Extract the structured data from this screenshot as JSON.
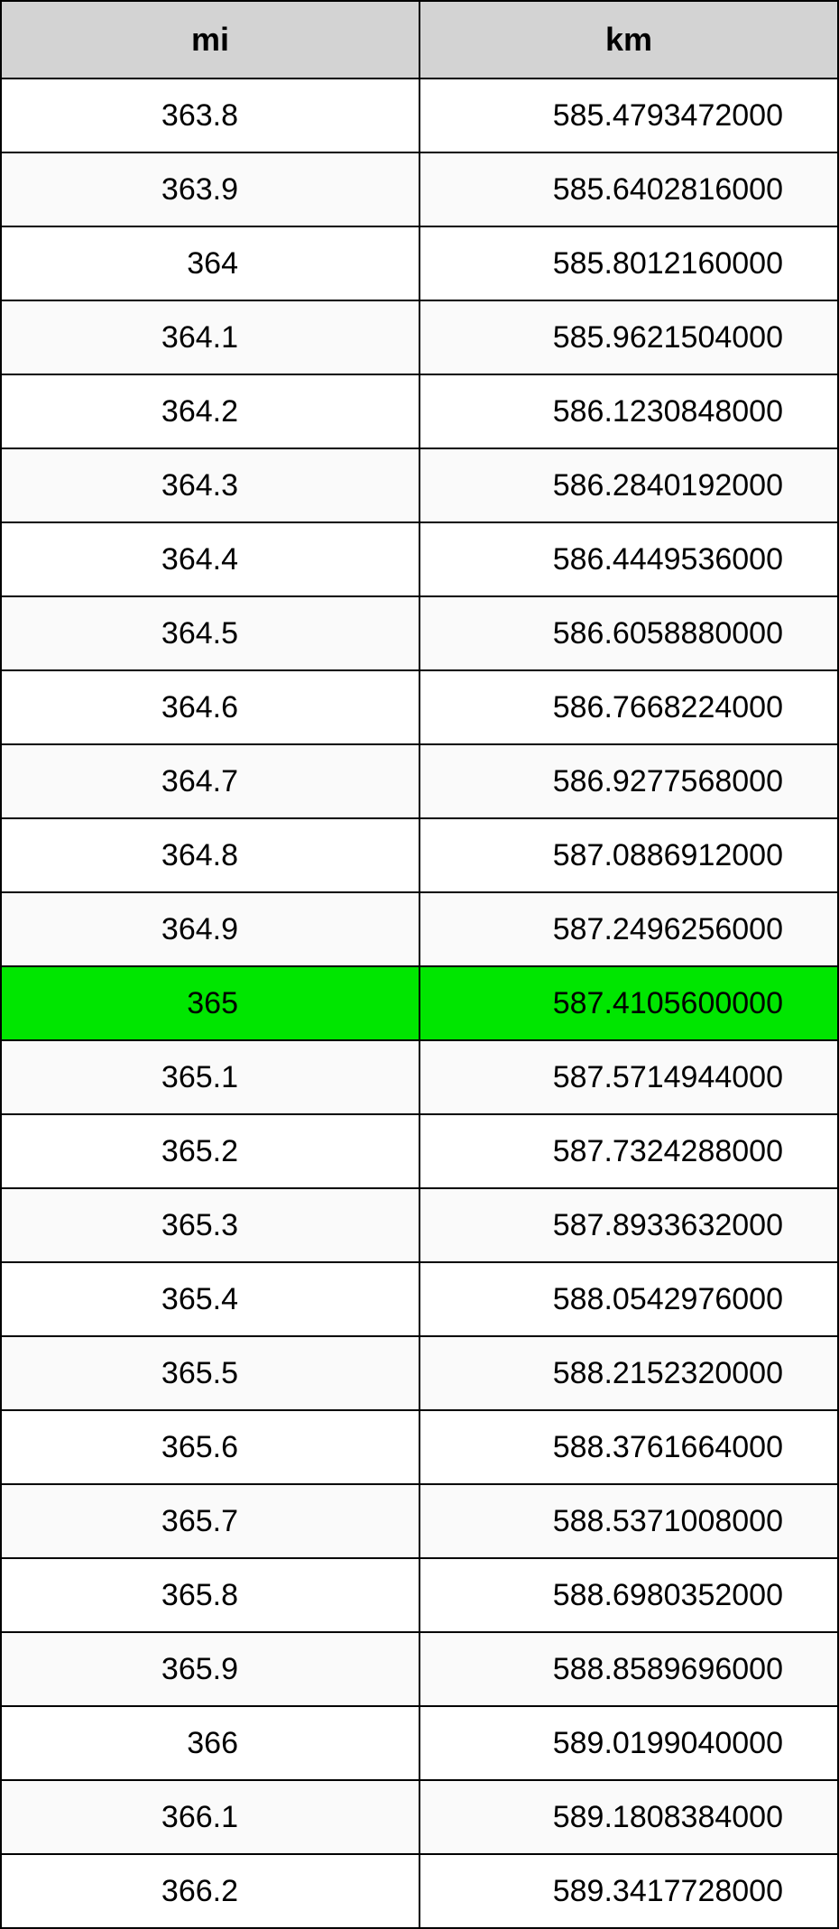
{
  "table": {
    "columns": [
      "mi",
      "km"
    ],
    "header_bg": "#d3d3d3",
    "row_bg_even": "#ffffff",
    "row_bg_odd": "#fafafa",
    "highlight_bg": "#00e600",
    "border_color": "#000000",
    "header_fontsize": 36,
    "cell_fontsize": 34,
    "rows": [
      {
        "mi": "363.8",
        "km": "585.4793472000",
        "highlight": false
      },
      {
        "mi": "363.9",
        "km": "585.6402816000",
        "highlight": false
      },
      {
        "mi": "364",
        "km": "585.8012160000",
        "highlight": false
      },
      {
        "mi": "364.1",
        "km": "585.9621504000",
        "highlight": false
      },
      {
        "mi": "364.2",
        "km": "586.1230848000",
        "highlight": false
      },
      {
        "mi": "364.3",
        "km": "586.2840192000",
        "highlight": false
      },
      {
        "mi": "364.4",
        "km": "586.4449536000",
        "highlight": false
      },
      {
        "mi": "364.5",
        "km": "586.6058880000",
        "highlight": false
      },
      {
        "mi": "364.6",
        "km": "586.7668224000",
        "highlight": false
      },
      {
        "mi": "364.7",
        "km": "586.9277568000",
        "highlight": false
      },
      {
        "mi": "364.8",
        "km": "587.0886912000",
        "highlight": false
      },
      {
        "mi": "364.9",
        "km": "587.2496256000",
        "highlight": false
      },
      {
        "mi": "365",
        "km": "587.4105600000",
        "highlight": true
      },
      {
        "mi": "365.1",
        "km": "587.5714944000",
        "highlight": false
      },
      {
        "mi": "365.2",
        "km": "587.7324288000",
        "highlight": false
      },
      {
        "mi": "365.3",
        "km": "587.8933632000",
        "highlight": false
      },
      {
        "mi": "365.4",
        "km": "588.0542976000",
        "highlight": false
      },
      {
        "mi": "365.5",
        "km": "588.2152320000",
        "highlight": false
      },
      {
        "mi": "365.6",
        "km": "588.3761664000",
        "highlight": false
      },
      {
        "mi": "365.7",
        "km": "588.5371008000",
        "highlight": false
      },
      {
        "mi": "365.8",
        "km": "588.6980352000",
        "highlight": false
      },
      {
        "mi": "365.9",
        "km": "588.8589696000",
        "highlight": false
      },
      {
        "mi": "366",
        "km": "589.0199040000",
        "highlight": false
      },
      {
        "mi": "366.1",
        "km": "589.1808384000",
        "highlight": false
      },
      {
        "mi": "366.2",
        "km": "589.3417728000",
        "highlight": false
      }
    ]
  }
}
